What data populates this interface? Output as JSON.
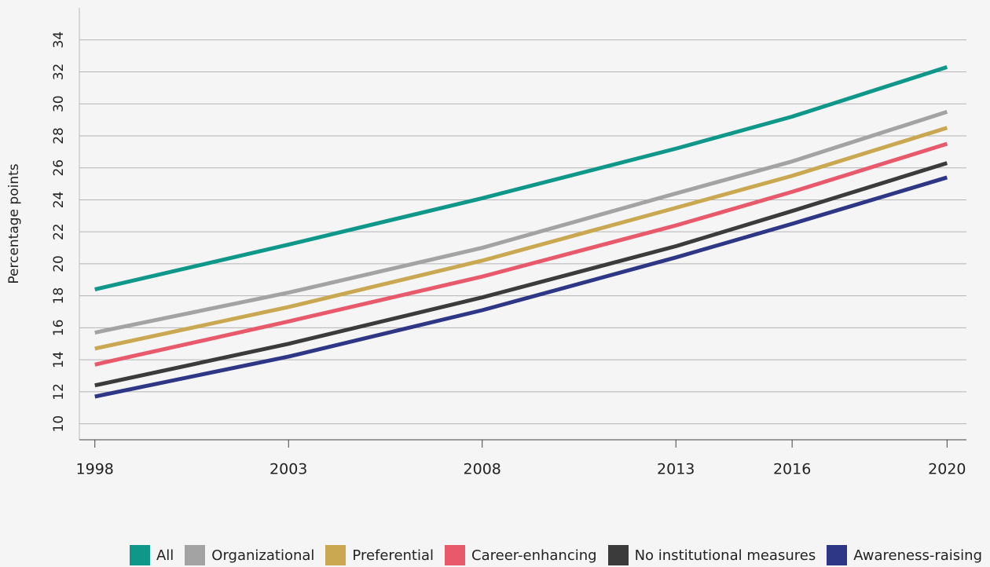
{
  "chart_data": {
    "type": "line",
    "y_label": "Percentage points",
    "x": [
      1998,
      2003,
      2008,
      2013,
      2016,
      2020
    ],
    "xlim": [
      1997.6,
      2020.5
    ],
    "xticks": [
      1998,
      2003,
      2008,
      2013,
      2016,
      2020
    ],
    "ylim": [
      9,
      36
    ],
    "yticks": [
      10,
      12,
      14,
      16,
      18,
      20,
      22,
      24,
      26,
      28,
      30,
      32,
      34
    ],
    "grid": true,
    "legend": "bottom",
    "series": [
      {
        "name": "All",
        "color": "#0f978a",
        "values": [
          18.4,
          21.2,
          24.1,
          27.2,
          29.2,
          32.3
        ]
      },
      {
        "name": "Organizational",
        "color": "#a3a3a3",
        "values": [
          15.7,
          18.2,
          21.0,
          24.4,
          26.4,
          29.5
        ]
      },
      {
        "name": "Preferential",
        "color": "#c9a851",
        "values": [
          14.7,
          17.3,
          20.2,
          23.5,
          25.5,
          28.5
        ]
      },
      {
        "name": "Career-enhancing",
        "color": "#e85a6b",
        "values": [
          13.7,
          16.4,
          19.2,
          22.4,
          24.5,
          27.5
        ]
      },
      {
        "name": "No institutional measures",
        "color": "#3b3b3b",
        "values": [
          12.4,
          15.0,
          17.9,
          21.1,
          23.3,
          26.3
        ]
      },
      {
        "name": "Awareness-raising",
        "color": "#2e3686",
        "values": [
          11.7,
          14.2,
          17.1,
          20.4,
          22.5,
          25.4
        ]
      }
    ]
  }
}
